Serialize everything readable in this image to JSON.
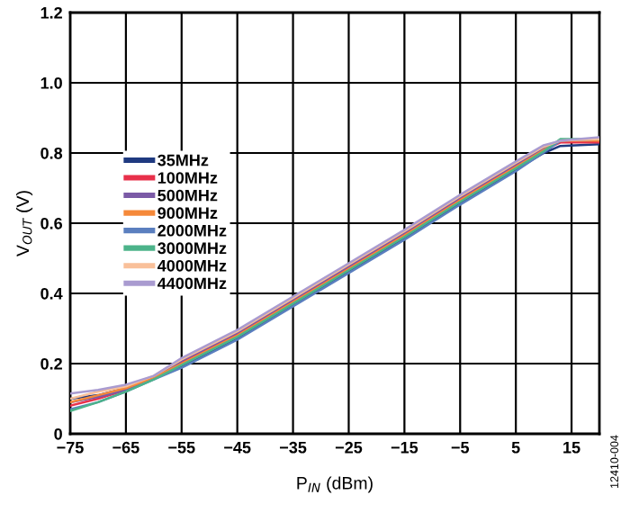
{
  "chart_data": {
    "type": "line",
    "xlabel": "P$_{IN}$ (dBm)",
    "ylabel": "V$_{OUT}$ (V)",
    "x": [
      -75,
      -70,
      -65,
      -60,
      -55,
      -45,
      -35,
      -25,
      -15,
      -5,
      5,
      10,
      13,
      20
    ],
    "series": [
      {
        "name": "35MHz",
        "color": "#1f3a80",
        "values": [
          0.1,
          0.11,
          0.13,
          0.16,
          0.192,
          0.272,
          0.367,
          0.462,
          0.557,
          0.657,
          0.752,
          0.8,
          0.82,
          0.825
        ]
      },
      {
        "name": "100MHz",
        "color": "#e8304a",
        "values": [
          0.08,
          0.1,
          0.125,
          0.16,
          0.204,
          0.284,
          0.379,
          0.474,
          0.569,
          0.669,
          0.764,
          0.81,
          0.83,
          0.83
        ]
      },
      {
        "name": "500MHz",
        "color": "#7b5aa6",
        "values": [
          0.09,
          0.105,
          0.125,
          0.16,
          0.208,
          0.288,
          0.383,
          0.478,
          0.573,
          0.673,
          0.768,
          0.815,
          0.835,
          0.84
        ]
      },
      {
        "name": "900MHz",
        "color": "#f5893a",
        "values": [
          0.09,
          0.11,
          0.13,
          0.16,
          0.2,
          0.28,
          0.375,
          0.47,
          0.565,
          0.665,
          0.76,
          0.808,
          0.835,
          0.835
        ]
      },
      {
        "name": "2000MHz",
        "color": "#5b7fbf",
        "values": [
          0.07,
          0.09,
          0.12,
          0.155,
          0.188,
          0.268,
          0.363,
          0.458,
          0.553,
          0.653,
          0.748,
          0.802,
          0.835,
          0.84
        ]
      },
      {
        "name": "3000MHz",
        "color": "#4cb38a",
        "values": [
          0.065,
          0.09,
          0.12,
          0.155,
          0.196,
          0.276,
          0.371,
          0.466,
          0.561,
          0.661,
          0.756,
          0.805,
          0.84,
          0.84
        ]
      },
      {
        "name": "4000MHz",
        "color": "#f9c09a",
        "values": [
          0.1,
          0.12,
          0.135,
          0.165,
          0.212,
          0.292,
          0.387,
          0.482,
          0.577,
          0.677,
          0.772,
          0.818,
          0.835,
          0.84
        ]
      },
      {
        "name": "4400MHz",
        "color": "#a99bd0",
        "values": [
          0.115,
          0.125,
          0.14,
          0.165,
          0.216,
          0.296,
          0.391,
          0.486,
          0.581,
          0.681,
          0.776,
          0.822,
          0.835,
          0.845
        ]
      }
    ],
    "xlim": [
      -75,
      20
    ],
    "xticks": [
      -75,
      -65,
      -55,
      -45,
      -35,
      -25,
      -15,
      -5,
      5,
      15
    ],
    "ylim": [
      0,
      1.2
    ],
    "yticks": [
      {
        "value": 0,
        "label": "0"
      },
      {
        "value": 0.2,
        "label": "0.2"
      },
      {
        "value": 0.4,
        "label": "0.4"
      },
      {
        "value": 0.6,
        "label": "0.6"
      },
      {
        "value": 0.8,
        "label": "0.8"
      },
      {
        "value": 1.0,
        "label": "1.0"
      },
      {
        "value": 1.2,
        "label": "1.2"
      }
    ],
    "grid": true,
    "legend": "left",
    "annotations": [
      "12410-004"
    ]
  }
}
